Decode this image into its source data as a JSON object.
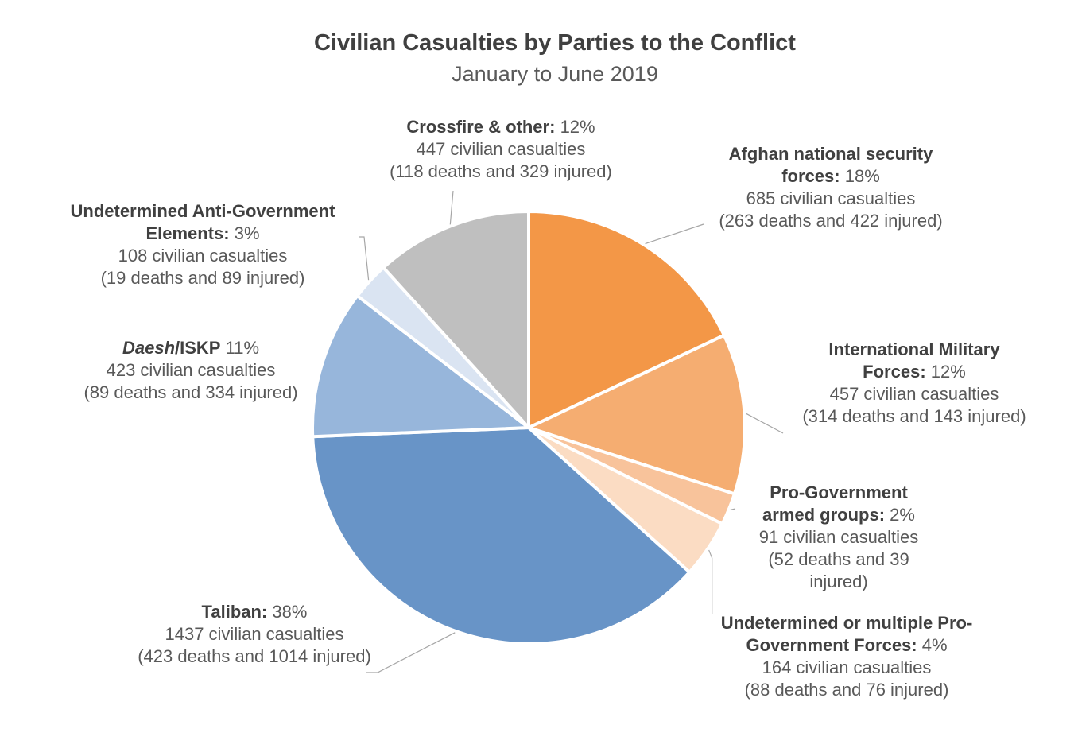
{
  "chart_data": {
    "type": "pie",
    "title": "Civilian Casualties by Parties to the Conflict",
    "subtitle": "January to June 2019",
    "slices": [
      {
        "name": "Afghan national security forces:",
        "percent_label": "18%",
        "value": 685,
        "casualties": "685 civilian casualties",
        "breakdown": "(263 deaths and 422 injured)",
        "color": "#F39747"
      },
      {
        "name": "International Military Forces:",
        "percent_label": "12%",
        "value": 457,
        "casualties": "457 civilian casualties",
        "breakdown": "(314 deaths and 143 injured)",
        "color": "#F5AD71"
      },
      {
        "name": "Pro-Government armed groups:",
        "percent_label": "2%",
        "value": 91,
        "casualties": "91 civilian casualties",
        "breakdown": "(52 deaths and 39 injured)",
        "color": "#F8C39B"
      },
      {
        "name": "Undetermined or multiple Pro-Government Forces:",
        "percent_label": "4%",
        "value": 164,
        "casualties": "164 civilian casualties",
        "breakdown": "(88 deaths and 76 injured)",
        "color": "#FBDCC3"
      },
      {
        "name": "Taliban:",
        "percent_label": "38%",
        "value": 1437,
        "casualties": "1437 civilian casualties",
        "breakdown": "(423 deaths and 1014 injured)",
        "color": "#6894C7"
      },
      {
        "name": "Daesh/ISKP",
        "percent_label": "11%",
        "value": 423,
        "casualties": "423 civilian casualties",
        "breakdown": "(89 deaths and 334 injured)",
        "color": "#97B6DB"
      },
      {
        "name": "Undetermined Anti-Government Elements:",
        "percent_label": "3%",
        "value": 108,
        "casualties": "108 civilian casualties",
        "breakdown": "(19 deaths and 89 injured)",
        "color": "#DAE4F2"
      },
      {
        "name": "Crossfire & other:",
        "percent_label": "12%",
        "value": 447,
        "casualties": "447 civilian casualties",
        "breakdown": "(118 deaths and 329 injured)",
        "color": "#BFBFBF"
      }
    ]
  },
  "labels": {
    "afghan": {
      "name_1": "Afghan national security",
      "name_2": "forces:",
      "pct": "18%"
    },
    "imf": {
      "name_1": "International Military",
      "name_2": "Forces:",
      "pct": "12%"
    },
    "pgag": {
      "name_1": "Pro-Government",
      "name_2": "armed groups:",
      "pct": "2%",
      "breakdown_1": "(52 deaths and 39",
      "breakdown_2": "injured)"
    },
    "upgf": {
      "name_1": "Undetermined or multiple Pro-",
      "name_2": "Government Forces:",
      "pct": "4%"
    },
    "taliban": {
      "name": "Taliban:",
      "pct": "38%"
    },
    "daesh": {
      "name_italic": "Daesh",
      "name_rest": "/ISKP",
      "pct": "11%"
    },
    "uage": {
      "name_1": "Undetermined Anti-Government",
      "name_2": "Elements:",
      "pct": "3%"
    },
    "crossfire": {
      "name": "Crossfire & other:",
      "pct": "12%"
    }
  }
}
